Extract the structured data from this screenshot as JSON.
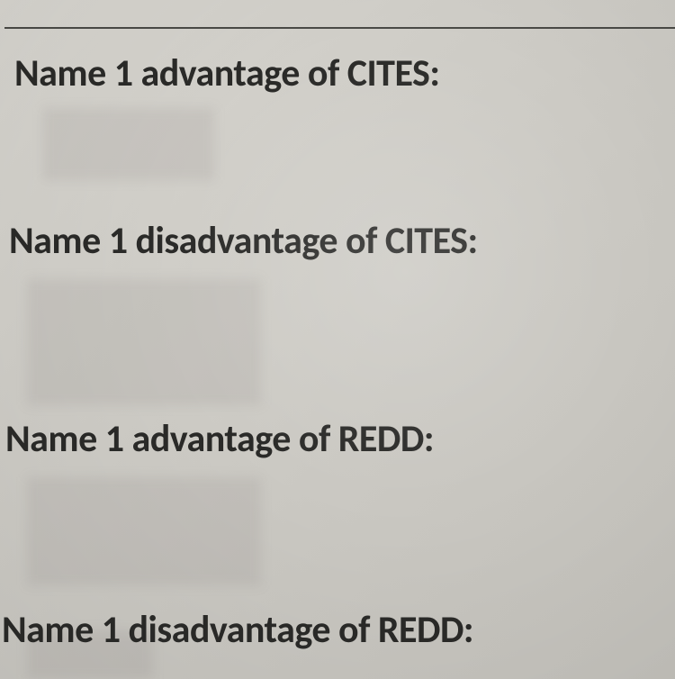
{
  "document": {
    "background_colors": [
      "#d8d6d0",
      "#d0cec8",
      "#cac8c2",
      "#c4c2bc"
    ],
    "rule_color": "#4a4a46",
    "text_color": "#2a2a28",
    "font_family": "Calibri",
    "font_weight": 700,
    "font_size_pt": 32,
    "prompts": [
      "Name 1 advantage of CITES:",
      "Name 1 disadvantage of CITES:",
      "Name 1 advantage of REDD:",
      "Name 1 disadvantage of REDD:"
    ]
  }
}
